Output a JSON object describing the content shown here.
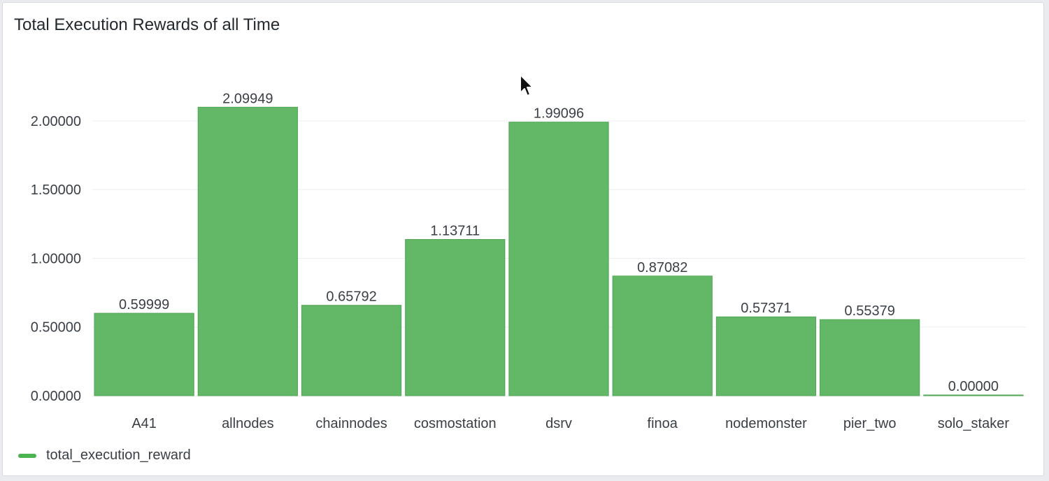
{
  "panel": {
    "title": "Total Execution Rewards of all Time"
  },
  "colors": {
    "bar": "#62b866",
    "bar_stroke": "#4ea553",
    "grid": "#eceef1",
    "text": "#3a3f45",
    "legend_swatch": "#4bb34f"
  },
  "chart_data": {
    "type": "bar",
    "categories": [
      "A41",
      "allnodes",
      "chainnodes",
      "cosmostation",
      "dsrv",
      "finoa",
      "nodemonster",
      "pier_two",
      "solo_staker"
    ],
    "series": [
      {
        "name": "total_execution_reward",
        "values": [
          0.59999,
          2.09949,
          0.65792,
          1.13711,
          1.99096,
          0.87082,
          0.57371,
          0.55379,
          0.0
        ]
      }
    ],
    "value_labels": [
      "0.59999",
      "2.09949",
      "0.65792",
      "1.13711",
      "1.99096",
      "0.87082",
      "0.57371",
      "0.55379",
      "0.00000"
    ],
    "y_ticks": [
      0,
      0.5,
      1,
      1.5,
      2
    ],
    "y_tick_labels": [
      "0.00000",
      "0.50000",
      "1.00000",
      "1.50000",
      "2.00000"
    ],
    "ylim": [
      0,
      2.0
    ],
    "grid": true,
    "legend_position": "bottom-left"
  },
  "legend": {
    "label": "total_execution_reward"
  },
  "cursor": {
    "icon": "mouse-pointer-icon"
  }
}
